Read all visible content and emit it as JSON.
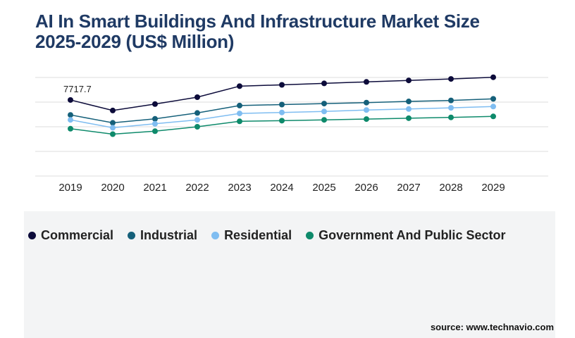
{
  "title_line1": "AI In Smart Buildings And Infrastructure Market Size",
  "title_line2": "2025-2029 (US$ Million)",
  "source": "source: www.technavio.com",
  "colors": {
    "title": "#1f3a64",
    "commercial": "#0c0b3a",
    "industrial": "#15607a",
    "residential": "#7fbdf1",
    "government": "#0e8a6b",
    "grid": "#dddddd"
  },
  "chart_data": {
    "type": "line",
    "categories": [
      "2019",
      "2020",
      "2021",
      "2022",
      "2023",
      "2024",
      "2025",
      "2026",
      "2027",
      "2028",
      "2029"
    ],
    "ylim": [
      0,
      10000
    ],
    "grid": true,
    "legend_position": "bottom",
    "annotations": [
      {
        "series": "Commercial",
        "category": "2019",
        "text": "7717.7"
      }
    ],
    "series": [
      {
        "name": "Commercial",
        "color": "#0c0b3a",
        "values": [
          7717.7,
          6650,
          7300,
          8000,
          9120,
          9250,
          9400,
          9550,
          9700,
          9850,
          10020
        ]
      },
      {
        "name": "Industrial",
        "color": "#15607a",
        "values": [
          6200,
          5400,
          5800,
          6400,
          7150,
          7250,
          7350,
          7450,
          7570,
          7670,
          7830
        ]
      },
      {
        "name": "Residential",
        "color": "#7fbdf1",
        "values": [
          5700,
          4900,
          5300,
          5700,
          6350,
          6450,
          6550,
          6700,
          6800,
          6920,
          7050
        ]
      },
      {
        "name": "Government And Public Sector",
        "color": "#0e8a6b",
        "values": [
          4800,
          4250,
          4550,
          5000,
          5550,
          5620,
          5700,
          5780,
          5870,
          5950,
          6050
        ]
      }
    ]
  }
}
